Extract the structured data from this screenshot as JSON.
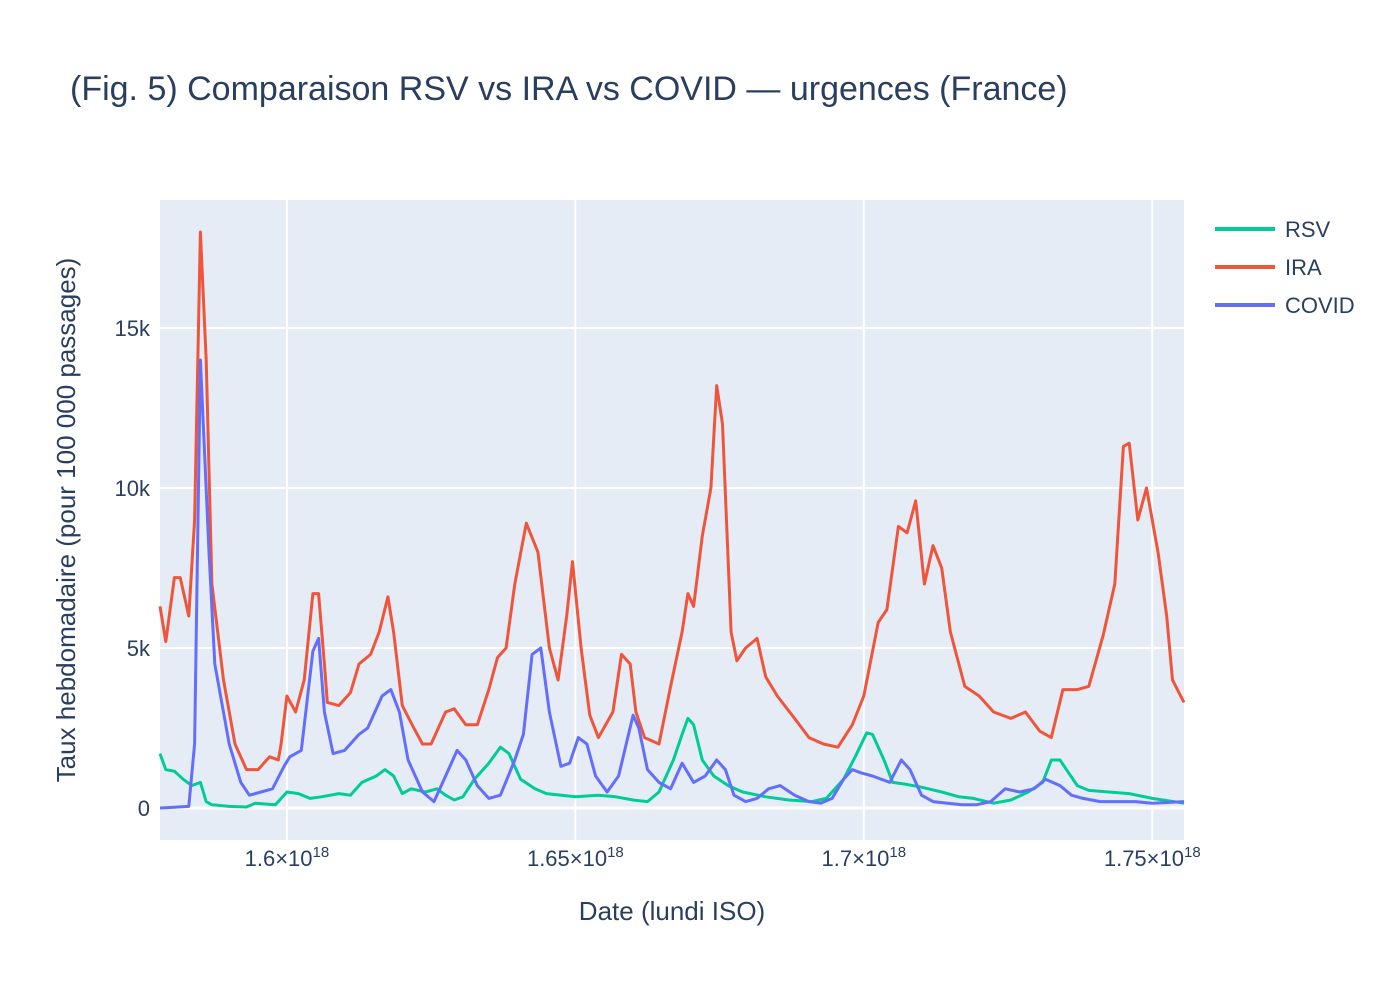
{
  "chart_data": {
    "type": "line",
    "title": "(Fig. 5) Comparaison RSV vs IRA vs COVID — urgences (France)",
    "xlabel": "Date (lundi ISO)",
    "ylabel": "Taux hebdomadaire (pour 100 000 passages)",
    "xlim": [
      1.578e+18,
      1.7555e+18
    ],
    "ylim": [
      -1000,
      19000
    ],
    "x_ticks": [
      {
        "value": 1.6e+18,
        "label": "1.6×10",
        "exp": "18"
      },
      {
        "value": 1.65e+18,
        "label": "1.65×10",
        "exp": "18"
      },
      {
        "value": 1.7e+18,
        "label": "1.7×10",
        "exp": "18"
      },
      {
        "value": 1.75e+18,
        "label": "1.75×10",
        "exp": "18"
      }
    ],
    "y_ticks": [
      {
        "value": 0,
        "label": "0"
      },
      {
        "value": 5000,
        "label": "5k"
      },
      {
        "value": 10000,
        "label": "10k"
      },
      {
        "value": 15000,
        "label": "15k"
      }
    ],
    "grid": true,
    "legend_position": "top-right",
    "colors": {
      "plot_bg": "#e5ecf6",
      "grid": "#ffffff",
      "RSV": "#00cc96",
      "IRA": "#ef553b",
      "COVID": "#636efa"
    },
    "series": [
      {
        "name": "RSV",
        "color": "#00cc96",
        "points": [
          [
            1.578e+18,
            1700
          ],
          [
            1.579e+18,
            1200
          ],
          [
            1.5805e+18,
            1150
          ],
          [
            1.582e+18,
            900
          ],
          [
            1.5835e+18,
            700
          ],
          [
            1.585e+18,
            800
          ],
          [
            1.586e+18,
            200
          ],
          [
            1.587e+18,
            100
          ],
          [
            1.59e+18,
            50
          ],
          [
            1.593e+18,
            30
          ],
          [
            1.5945e+18,
            150
          ],
          [
            1.598e+18,
            100
          ],
          [
            1.6e+18,
            500
          ],
          [
            1.602e+18,
            450
          ],
          [
            1.604e+18,
            300
          ],
          [
            1.606e+18,
            350
          ],
          [
            1.609e+18,
            450
          ],
          [
            1.611e+18,
            400
          ],
          [
            1.613e+18,
            800
          ],
          [
            1.6155e+18,
            1000
          ],
          [
            1.617e+18,
            1200
          ],
          [
            1.6185e+18,
            1000
          ],
          [
            1.62e+18,
            450
          ],
          [
            1.6215e+18,
            600
          ],
          [
            1.624e+18,
            500
          ],
          [
            1.626e+18,
            600
          ],
          [
            1.6275e+18,
            400
          ],
          [
            1.629e+18,
            250
          ],
          [
            1.6305e+18,
            350
          ],
          [
            1.6325e+18,
            900
          ],
          [
            1.635e+18,
            1400
          ],
          [
            1.637e+18,
            1900
          ],
          [
            1.6385e+18,
            1700
          ],
          [
            1.6405e+18,
            900
          ],
          [
            1.643e+18,
            600
          ],
          [
            1.645e+18,
            450
          ],
          [
            1.65e+18,
            350
          ],
          [
            1.654e+18,
            400
          ],
          [
            1.657e+18,
            350
          ],
          [
            1.66e+18,
            250
          ],
          [
            1.6625e+18,
            200
          ],
          [
            1.6645e+18,
            500
          ],
          [
            1.667e+18,
            1500
          ],
          [
            1.6685e+18,
            2300
          ],
          [
            1.6695e+18,
            2800
          ],
          [
            1.6705e+18,
            2600
          ],
          [
            1.672e+18,
            1500
          ],
          [
            1.674e+18,
            1000
          ],
          [
            1.6765e+18,
            700
          ],
          [
            1.679e+18,
            500
          ],
          [
            1.683e+18,
            350
          ],
          [
            1.687e+18,
            250
          ],
          [
            1.691e+18,
            200
          ],
          [
            1.6935e+18,
            300
          ],
          [
            1.6965e+18,
            900
          ],
          [
            1.6985e+18,
            1600
          ],
          [
            1.7005e+18,
            2350
          ],
          [
            1.7015e+18,
            2300
          ],
          [
            1.7035e+18,
            1500
          ],
          [
            1.705e+18,
            800
          ],
          [
            1.707e+18,
            750
          ],
          [
            1.71e+18,
            650
          ],
          [
            1.7135e+18,
            500
          ],
          [
            1.7165e+18,
            350
          ],
          [
            1.719e+18,
            300
          ],
          [
            1.7225e+18,
            150
          ],
          [
            1.7255e+18,
            250
          ],
          [
            1.7285e+18,
            500
          ],
          [
            1.731e+18,
            800
          ],
          [
            1.7325e+18,
            1500
          ],
          [
            1.734e+18,
            1500
          ],
          [
            1.7355e+18,
            1100
          ],
          [
            1.737e+18,
            700
          ],
          [
            1.739e+18,
            550
          ],
          [
            1.7425e+18,
            500
          ],
          [
            1.746e+18,
            450
          ],
          [
            1.75e+18,
            300
          ],
          [
            1.7555e+18,
            150
          ]
        ]
      },
      {
        "name": "IRA",
        "color": "#ef553b",
        "points": [
          [
            1.578e+18,
            6300
          ],
          [
            1.579e+18,
            5200
          ],
          [
            1.5805e+18,
            7200
          ],
          [
            1.5815e+18,
            7200
          ],
          [
            1.583e+18,
            6000
          ],
          [
            1.584e+18,
            9000
          ],
          [
            1.585e+18,
            18000
          ],
          [
            1.586e+18,
            14000
          ],
          [
            1.587e+18,
            7000
          ],
          [
            1.589e+18,
            4000
          ],
          [
            1.591e+18,
            2000
          ],
          [
            1.593e+18,
            1200
          ],
          [
            1.595e+18,
            1200
          ],
          [
            1.597e+18,
            1600
          ],
          [
            1.5985e+18,
            1500
          ],
          [
            1.599e+18,
            2000
          ],
          [
            1.6e+18,
            3500
          ],
          [
            1.6015e+18,
            3000
          ],
          [
            1.603e+18,
            4000
          ],
          [
            1.6045e+18,
            6700
          ],
          [
            1.6055e+18,
            6700
          ],
          [
            1.6065e+18,
            4500
          ],
          [
            1.607e+18,
            3300
          ],
          [
            1.609e+18,
            3200
          ],
          [
            1.611e+18,
            3600
          ],
          [
            1.6125e+18,
            4500
          ],
          [
            1.6145e+18,
            4800
          ],
          [
            1.616e+18,
            5500
          ],
          [
            1.6175e+18,
            6600
          ],
          [
            1.6185e+18,
            5500
          ],
          [
            1.62e+18,
            3200
          ],
          [
            1.622e+18,
            2500
          ],
          [
            1.6235e+18,
            2000
          ],
          [
            1.625e+18,
            2000
          ],
          [
            1.6275e+18,
            3000
          ],
          [
            1.629e+18,
            3100
          ],
          [
            1.631e+18,
            2600
          ],
          [
            1.633e+18,
            2600
          ],
          [
            1.635e+18,
            3700
          ],
          [
            1.6365e+18,
            4700
          ],
          [
            1.638e+18,
            5000
          ],
          [
            1.6395e+18,
            7000
          ],
          [
            1.6415e+18,
            8900
          ],
          [
            1.6435e+18,
            8000
          ],
          [
            1.6455e+18,
            5000
          ],
          [
            1.647e+18,
            4000
          ],
          [
            1.6485e+18,
            6000
          ],
          [
            1.6495e+18,
            7700
          ],
          [
            1.651e+18,
            5000
          ],
          [
            1.6525e+18,
            2900
          ],
          [
            1.654e+18,
            2200
          ],
          [
            1.6565e+18,
            3000
          ],
          [
            1.658e+18,
            4800
          ],
          [
            1.6595e+18,
            4500
          ],
          [
            1.6605e+18,
            3000
          ],
          [
            1.662e+18,
            2200
          ],
          [
            1.6645e+18,
            2000
          ],
          [
            1.6665e+18,
            3800
          ],
          [
            1.6685e+18,
            5500
          ],
          [
            1.6695e+18,
            6700
          ],
          [
            1.6705e+18,
            6300
          ],
          [
            1.672e+18,
            8500
          ],
          [
            1.6735e+18,
            10000
          ],
          [
            1.6745e+18,
            13200
          ],
          [
            1.6755e+18,
            12000
          ],
          [
            1.677e+18,
            5500
          ],
          [
            1.678e+18,
            4600
          ],
          [
            1.6795e+18,
            5000
          ],
          [
            1.6815e+18,
            5300
          ],
          [
            1.683e+18,
            4100
          ],
          [
            1.685e+18,
            3500
          ],
          [
            1.688e+18,
            2800
          ],
          [
            1.6905e+18,
            2200
          ],
          [
            1.693e+18,
            2000
          ],
          [
            1.6955e+18,
            1900
          ],
          [
            1.698e+18,
            2600
          ],
          [
            1.7e+18,
            3500
          ],
          [
            1.7025e+18,
            5800
          ],
          [
            1.704e+18,
            6200
          ],
          [
            1.706e+18,
            8800
          ],
          [
            1.7075e+18,
            8600
          ],
          [
            1.709e+18,
            9600
          ],
          [
            1.7105e+18,
            7000
          ],
          [
            1.712e+18,
            8200
          ],
          [
            1.7135e+18,
            7500
          ],
          [
            1.715e+18,
            5500
          ],
          [
            1.7175e+18,
            3800
          ],
          [
            1.72e+18,
            3500
          ],
          [
            1.7225e+18,
            3000
          ],
          [
            1.7255e+18,
            2800
          ],
          [
            1.728e+18,
            3000
          ],
          [
            1.7305e+18,
            2400
          ],
          [
            1.7325e+18,
            2200
          ],
          [
            1.7345e+18,
            3700
          ],
          [
            1.737e+18,
            3700
          ],
          [
            1.739e+18,
            3800
          ],
          [
            1.7415e+18,
            5400
          ],
          [
            1.7435e+18,
            7000
          ],
          [
            1.745e+18,
            11300
          ],
          [
            1.746e+18,
            11400
          ],
          [
            1.7475e+18,
            9000
          ],
          [
            1.749e+18,
            10000
          ],
          [
            1.751e+18,
            8000
          ],
          [
            1.7525e+18,
            6000
          ],
          [
            1.7535e+18,
            4000
          ],
          [
            1.7555e+18,
            3300
          ]
        ]
      },
      {
        "name": "COVID",
        "color": "#636efa",
        "points": [
          [
            1.578e+18,
            0
          ],
          [
            1.579e+18,
            10
          ],
          [
            1.583e+18,
            50
          ],
          [
            1.584e+18,
            2000
          ],
          [
            1.585e+18,
            14000
          ],
          [
            1.5865e+18,
            8000
          ],
          [
            1.5875e+18,
            4500
          ],
          [
            1.59e+18,
            2000
          ],
          [
            1.592e+18,
            800
          ],
          [
            1.5935e+18,
            400
          ],
          [
            1.5955e+18,
            500
          ],
          [
            1.5975e+18,
            600
          ],
          [
            1.5995e+18,
            1300
          ],
          [
            1.6005e+18,
            1600
          ],
          [
            1.6025e+18,
            1800
          ],
          [
            1.6045e+18,
            4900
          ],
          [
            1.6055e+18,
            5300
          ],
          [
            1.6065e+18,
            3000
          ],
          [
            1.608e+18,
            1700
          ],
          [
            1.61e+18,
            1800
          ],
          [
            1.6125e+18,
            2300
          ],
          [
            1.614e+18,
            2500
          ],
          [
            1.6165e+18,
            3500
          ],
          [
            1.618e+18,
            3700
          ],
          [
            1.6195e+18,
            3000
          ],
          [
            1.621e+18,
            1500
          ],
          [
            1.6235e+18,
            500
          ],
          [
            1.6255e+18,
            200
          ],
          [
            1.6275e+18,
            1000
          ],
          [
            1.6295e+18,
            1800
          ],
          [
            1.631e+18,
            1500
          ],
          [
            1.633e+18,
            700
          ],
          [
            1.635e+18,
            300
          ],
          [
            1.637e+18,
            400
          ],
          [
            1.6395e+18,
            1500
          ],
          [
            1.641e+18,
            2300
          ],
          [
            1.6425e+18,
            4800
          ],
          [
            1.644e+18,
            5000
          ],
          [
            1.6455e+18,
            3000
          ],
          [
            1.6475e+18,
            1300
          ],
          [
            1.649e+18,
            1400
          ],
          [
            1.6505e+18,
            2200
          ],
          [
            1.652e+18,
            2000
          ],
          [
            1.6535e+18,
            1000
          ],
          [
            1.6555e+18,
            500
          ],
          [
            1.6575e+18,
            1000
          ],
          [
            1.66e+18,
            2900
          ],
          [
            1.661e+18,
            2500
          ],
          [
            1.6625e+18,
            1200
          ],
          [
            1.6645e+18,
            800
          ],
          [
            1.6665e+18,
            600
          ],
          [
            1.6685e+18,
            1400
          ],
          [
            1.6705e+18,
            800
          ],
          [
            1.6725e+18,
            1000
          ],
          [
            1.6745e+18,
            1500
          ],
          [
            1.676e+18,
            1200
          ],
          [
            1.6775e+18,
            400
          ],
          [
            1.6795e+18,
            200
          ],
          [
            1.6815e+18,
            300
          ],
          [
            1.6835e+18,
            600
          ],
          [
            1.6855e+18,
            700
          ],
          [
            1.688e+18,
            400
          ],
          [
            1.6905e+18,
            200
          ],
          [
            1.6925e+18,
            150
          ],
          [
            1.6945e+18,
            300
          ],
          [
            1.6965e+18,
            900
          ],
          [
            1.698e+18,
            1200
          ],
          [
            1.6995e+18,
            1100
          ],
          [
            1.7015e+18,
            1000
          ],
          [
            1.7045e+18,
            800
          ],
          [
            1.7065e+18,
            1500
          ],
          [
            1.708e+18,
            1200
          ],
          [
            1.71e+18,
            400
          ],
          [
            1.712e+18,
            200
          ],
          [
            1.7145e+18,
            150
          ],
          [
            1.717e+18,
            100
          ],
          [
            1.7195e+18,
            100
          ],
          [
            1.722e+18,
            200
          ],
          [
            1.7245e+18,
            600
          ],
          [
            1.727e+18,
            500
          ],
          [
            1.7295e+18,
            600
          ],
          [
            1.7315e+18,
            900
          ],
          [
            1.734e+18,
            700
          ],
          [
            1.736e+18,
            400
          ],
          [
            1.738e+18,
            300
          ],
          [
            1.741e+18,
            200
          ],
          [
            1.744e+18,
            200
          ],
          [
            1.747e+18,
            200
          ],
          [
            1.75e+18,
            150
          ],
          [
            1.7555e+18,
            200
          ]
        ]
      }
    ]
  }
}
